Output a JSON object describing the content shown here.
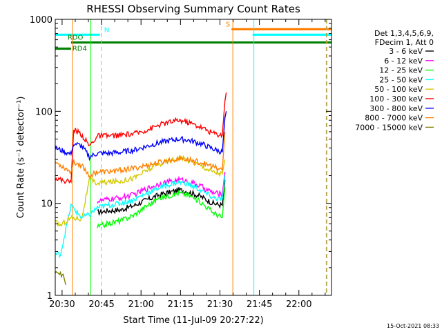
{
  "chart_data": {
    "type": "line",
    "title": "RHESSI Observing Summary Count Rates",
    "xlabel": "Start Time (11-Jul-09 20:27:22)",
    "ylabel": "Count Rate (s⁻¹ detector⁻¹)",
    "x_unit": "minutes after 20:27:22",
    "xlim": [
      0,
      105
    ],
    "ylim": [
      1,
      1000
    ],
    "yscale": "log",
    "x_ticks": [
      {
        "label": "20:30",
        "x": 2.6
      },
      {
        "label": "20:45",
        "x": 17.6
      },
      {
        "label": "21:00",
        "x": 32.6
      },
      {
        "label": "21:15",
        "x": 47.6
      },
      {
        "label": "21:30",
        "x": 62.6
      },
      {
        "label": "21:45",
        "x": 77.6
      },
      {
        "label": "22:00",
        "x": 92.6
      }
    ],
    "y_ticks": [
      {
        "label": "1",
        "y": 1
      },
      {
        "label": "10",
        "y": 10
      },
      {
        "label": "100",
        "y": 100
      },
      {
        "label": "1000",
        "y": 1000
      }
    ],
    "legend": {
      "header": [
        "Det 1,3,4,5,6,9,",
        "FDecim 1, Att 0"
      ],
      "placement": "right"
    },
    "series": [
      {
        "name": "3 - 6 keV",
        "color": "#000000",
        "x": [
          16,
          20,
          25,
          30,
          35,
          40,
          45,
          47,
          50,
          55,
          60,
          63.5,
          64.5
        ],
        "y": [
          8,
          8.3,
          8.5,
          9.5,
          11,
          12.5,
          13.5,
          14,
          13.5,
          12,
          10,
          9.5,
          18
        ]
      },
      {
        "name": "6 - 12 keV",
        "color": "#ff00ff",
        "x": [
          16,
          20,
          25,
          30,
          35,
          40,
          45,
          47,
          50,
          55,
          60,
          63.5,
          64.5
        ],
        "y": [
          10.5,
          11,
          11.5,
          12.5,
          14.5,
          16.5,
          17.5,
          18,
          17.5,
          15.5,
          13,
          12.5,
          22
        ]
      },
      {
        "name": "12 - 25 keV",
        "color": "#00ff00",
        "x": [
          16,
          20,
          25,
          30,
          35,
          40,
          45,
          47,
          50,
          55,
          60,
          63.5,
          64.5
        ],
        "y": [
          5.5,
          6,
          6.5,
          7.5,
          9.5,
          11.5,
          12.5,
          13,
          12.5,
          10.5,
          8,
          7,
          15
        ]
      },
      {
        "name": "25 - 50 keV",
        "color": "#00ffff",
        "x": [
          0,
          2,
          6,
          10,
          13,
          16,
          20,
          25,
          30,
          35,
          40,
          45,
          47,
          50,
          55,
          60,
          63.5,
          64.5
        ],
        "y": [
          2.8,
          2.8,
          9.5,
          7,
          7.5,
          9,
          9.5,
          10,
          11,
          13,
          15,
          16.5,
          17,
          16.5,
          14,
          11.5,
          11,
          20
        ]
      },
      {
        "name": "50 - 100 keV",
        "color": "#d4c800",
        "x": [
          0,
          2,
          6,
          10,
          13,
          16,
          20,
          25,
          30,
          35,
          40,
          45,
          47,
          50,
          55,
          60,
          63.5,
          64.5
        ],
        "y": [
          6.2,
          5.8,
          7,
          6.8,
          18,
          16.5,
          17,
          17.5,
          19,
          23,
          27,
          30,
          31,
          30,
          26,
          22,
          21,
          30
        ]
      },
      {
        "name": "100 - 300 keV",
        "color": "#ff0000",
        "x": [
          0,
          2,
          6,
          7,
          10,
          13,
          16,
          20,
          25,
          30,
          35,
          40,
          45,
          47,
          50,
          55,
          60,
          63.5,
          64.5,
          65
        ],
        "y": [
          19,
          18,
          17,
          64,
          56,
          42,
          54,
          54,
          55,
          57,
          63,
          72,
          78,
          80,
          77,
          68,
          58,
          55,
          130,
          160
        ]
      },
      {
        "name": "300 - 800 keV",
        "color": "#0000ff",
        "x": [
          0,
          2,
          6,
          7,
          10,
          13,
          16,
          20,
          25,
          30,
          35,
          40,
          45,
          47,
          50,
          55,
          60,
          63.5,
          64.5,
          65
        ],
        "y": [
          40,
          38,
          34,
          45,
          42,
          32,
          35,
          35,
          36,
          38,
          42,
          46,
          49,
          50,
          49,
          45,
          39,
          36,
          85,
          100
        ]
      },
      {
        "name": "800 - 7000 keV",
        "color": "#ff8000",
        "x": [
          0,
          2,
          6,
          7,
          10,
          13,
          16,
          20,
          25,
          30,
          35,
          40,
          45,
          47,
          50,
          55,
          60,
          63.5,
          64.5
        ],
        "y": [
          28,
          26,
          22,
          28,
          26,
          20,
          22,
          22,
          23,
          24,
          26,
          28,
          30,
          31,
          30,
          28,
          25,
          23,
          60
        ]
      },
      {
        "name": "7000 - 15000 keV",
        "color": "#808000",
        "x": [
          0,
          3,
          4
        ],
        "y": [
          1.7,
          1.7,
          1.3
        ]
      }
    ],
    "flags": [
      {
        "label": "N",
        "color": "#00ffff",
        "y": 680,
        "segments": [
          [
            0,
            17
          ]
        ]
      },
      {
        "label": "S",
        "color": "#ff8000",
        "y": 780,
        "segments": [
          [
            67,
            105
          ]
        ]
      },
      {
        "label": "RDO",
        "color": "#008000",
        "y": 560,
        "segments": [
          [
            6,
            105
          ]
        ]
      },
      {
        "label": "RD4",
        "color": "#008000",
        "y": 480,
        "segments": [
          [
            0,
            6
          ]
        ]
      },
      {
        "label": "",
        "color": "#00ffff",
        "y": 680,
        "segments": [
          [
            75,
            105
          ]
        ]
      }
    ],
    "vlines": [
      {
        "x": 17.5,
        "color": "#00ffff",
        "dash": true
      },
      {
        "x": 6.5,
        "color": "#ff8000",
        "dash": false
      },
      {
        "x": 67.5,
        "color": "#ff8000",
        "dash": false
      },
      {
        "x": 75.5,
        "color": "#00ffff",
        "dash": false
      },
      {
        "x": 103,
        "color": "#ff8000",
        "dash": true
      },
      {
        "x": 103.3,
        "color": "#00ffff",
        "dash": true
      },
      {
        "x": 13.5,
        "color": "#00ff00",
        "dash": false
      }
    ],
    "timestamp": "15-Oct-2021 08:33"
  }
}
